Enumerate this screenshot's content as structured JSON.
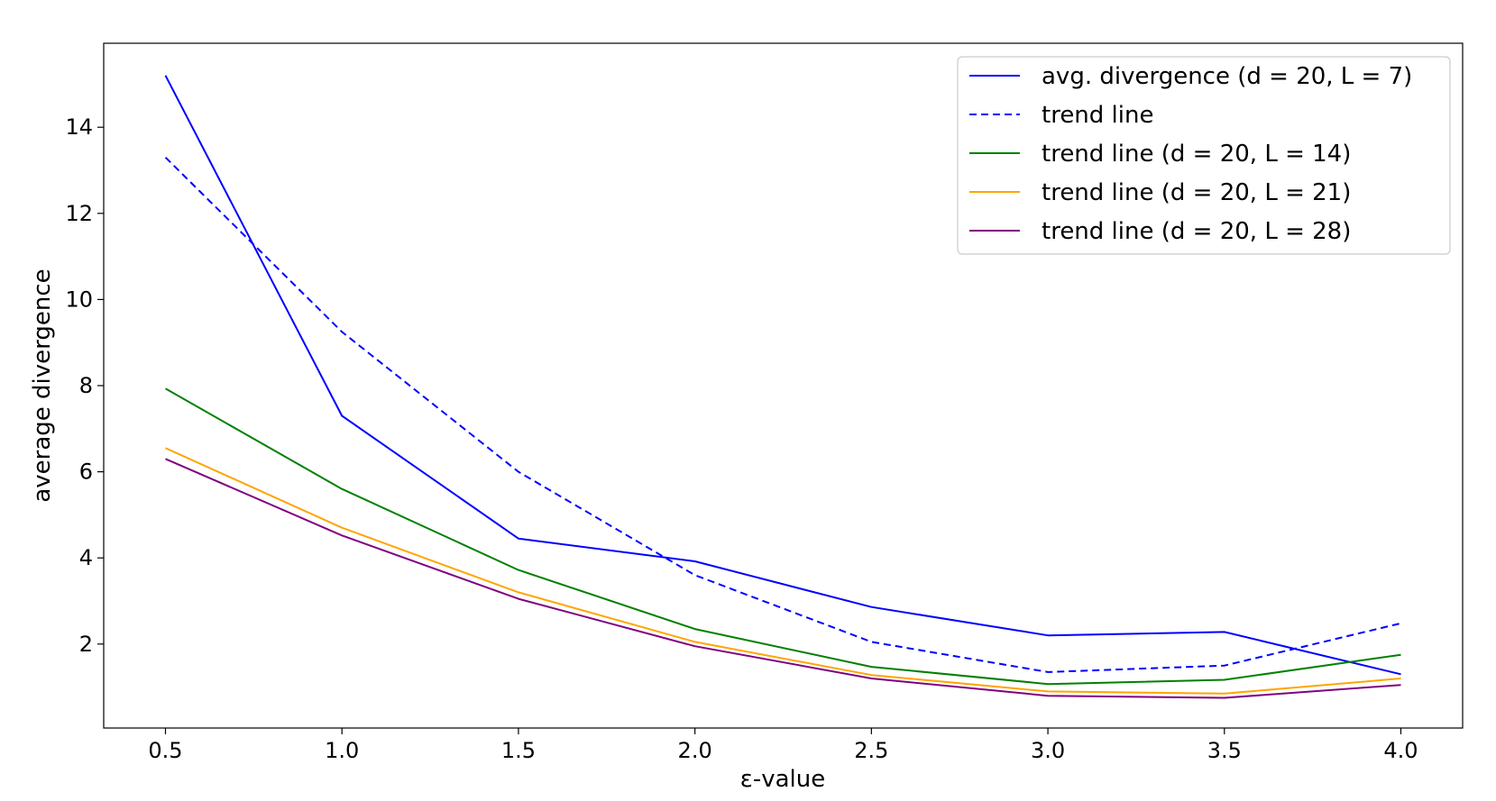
{
  "chart_data": {
    "type": "line",
    "title": "",
    "xlabel": "ε-value",
    "ylabel": "average divergence",
    "x": [
      0.5,
      1.0,
      1.5,
      2.0,
      2.5,
      3.0,
      3.5,
      4.0
    ],
    "xticks": [
      "0.5",
      "1.0",
      "1.5",
      "2.0",
      "2.5",
      "3.0",
      "3.5",
      "4.0"
    ],
    "yticks": [
      "2",
      "4",
      "6",
      "8",
      "10",
      "12",
      "14"
    ],
    "xlim": [
      0.325,
      4.175
    ],
    "ylim": [
      0.05,
      15.95
    ],
    "grid": false,
    "legend_position": "top-right",
    "series": [
      {
        "name": "avg. divergence (d = 20, L = 7)",
        "color": "#0000ff",
        "dashed": false,
        "values": [
          15.2,
          7.3,
          4.45,
          3.92,
          2.86,
          2.2,
          2.28,
          1.3
        ]
      },
      {
        "name": "trend line",
        "color": "#0000ff",
        "dashed": true,
        "values": [
          13.3,
          9.25,
          6.0,
          3.6,
          2.05,
          1.35,
          1.5,
          2.48
        ]
      },
      {
        "name": "trend line (d = 20, L = 14)",
        "color": "#008000",
        "dashed": false,
        "values": [
          7.93,
          5.6,
          3.72,
          2.35,
          1.47,
          1.07,
          1.17,
          1.75
        ]
      },
      {
        "name": "trend line (d = 20, L = 21)",
        "color": "#ffa500",
        "dashed": false,
        "values": [
          6.55,
          4.7,
          3.2,
          2.05,
          1.28,
          0.9,
          0.85,
          1.2
        ]
      },
      {
        "name": "trend line (d = 20, L = 28)",
        "color": "#800080",
        "dashed": false,
        "values": [
          6.3,
          4.52,
          3.05,
          1.95,
          1.2,
          0.8,
          0.75,
          1.05
        ]
      }
    ]
  }
}
